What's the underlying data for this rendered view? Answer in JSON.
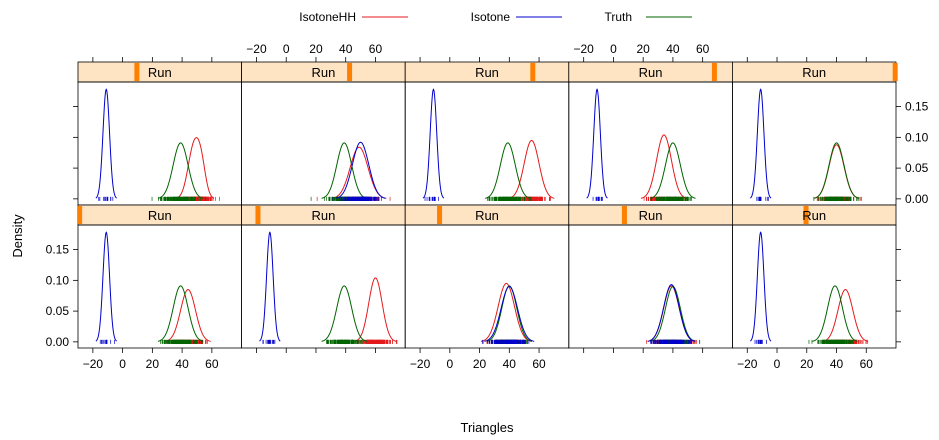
{
  "chart_data": {
    "type": "line",
    "layout": "trellis 5 columns x 2 rows",
    "xlabel": "Triangles",
    "ylabel": "Density",
    "xlim": [
      -30,
      80
    ],
    "ylim": [
      -0.01,
      0.19
    ],
    "x_ticks": [
      -20,
      0,
      20,
      40,
      60
    ],
    "y_ticks": [
      0.0,
      0.05,
      0.1,
      0.15
    ],
    "y_tick_labels": [
      "0.00",
      "0.05",
      "0.10",
      "0.15"
    ],
    "legend": {
      "position": "top",
      "entries": [
        {
          "name": "IsotoneHH",
          "color": "#e41a1c"
        },
        {
          "name": "Isotone",
          "color": "#0000cc"
        },
        {
          "name": "Truth",
          "color": "#006400"
        }
      ]
    },
    "colors": {
      "IsotoneHH": "#e41a1c",
      "Isotone": "#0000cc",
      "Truth": "#006400",
      "strip_bg": "#ffe4c4",
      "strip_marker": "#ff7f00"
    },
    "strip_label": "Run",
    "panels": [
      {
        "row": 1,
        "col": 1,
        "strip_marker": 0.36,
        "series": [
          {
            "name": "Isotone",
            "peaks": [
              {
                "mean": -11,
                "sd": 2.2,
                "height": 0.178
              }
            ]
          },
          {
            "name": "IsotoneHH",
            "peaks": [
              {
                "mean": 48,
                "sd": 4.0,
                "height": 0.085
              },
              {
                "mean": 53,
                "sd": 3.0,
                "height": 0.04
              }
            ]
          },
          {
            "name": "Truth",
            "peaks": [
              {
                "mean": 39,
                "sd": 5.0,
                "height": 0.091
              }
            ]
          }
        ]
      },
      {
        "row": 1,
        "col": 2,
        "strip_marker": 0.66,
        "series": [
          {
            "name": "Isotone",
            "peaks": [
              {
                "mean": 50,
                "sd": 5.5,
                "height": 0.092
              }
            ]
          },
          {
            "name": "IsotoneHH",
            "peaks": [
              {
                "mean": 49,
                "sd": 6.0,
                "height": 0.084
              }
            ]
          },
          {
            "name": "Truth",
            "peaks": [
              {
                "mean": 39,
                "sd": 5.0,
                "height": 0.091
              }
            ]
          }
        ]
      },
      {
        "row": 1,
        "col": 3,
        "strip_marker": 0.78,
        "series": [
          {
            "name": "Isotone",
            "peaks": [
              {
                "mean": -11,
                "sd": 2.2,
                "height": 0.178
              }
            ]
          },
          {
            "name": "IsotoneHH",
            "peaks": [
              {
                "mean": 55,
                "sd": 5.0,
                "height": 0.095
              }
            ]
          },
          {
            "name": "Truth",
            "peaks": [
              {
                "mean": 39,
                "sd": 5.0,
                "height": 0.091
              }
            ]
          }
        ]
      },
      {
        "row": 1,
        "col": 4,
        "strip_marker": 0.89,
        "series": [
          {
            "name": "Isotone",
            "peaks": [
              {
                "mean": -11,
                "sd": 2.2,
                "height": 0.178
              }
            ]
          },
          {
            "name": "IsotoneHH",
            "peaks": [
              {
                "mean": 34,
                "sd": 5.0,
                "height": 0.104
              }
            ]
          },
          {
            "name": "Truth",
            "peaks": [
              {
                "mean": 40,
                "sd": 5.0,
                "height": 0.091
              }
            ]
          }
        ]
      },
      {
        "row": 1,
        "col": 5,
        "strip_marker": 0.995,
        "series": [
          {
            "name": "Isotone",
            "peaks": [
              {
                "mean": -11,
                "sd": 2.2,
                "height": 0.178
              }
            ]
          },
          {
            "name": "IsotoneHH",
            "peaks": [
              {
                "mean": 40,
                "sd": 5.0,
                "height": 0.088
              }
            ]
          },
          {
            "name": "Truth",
            "peaks": [
              {
                "mean": 40,
                "sd": 5.0,
                "height": 0.091
              }
            ]
          }
        ]
      },
      {
        "row": 2,
        "col": 1,
        "strip_marker": 0.01,
        "series": [
          {
            "name": "Isotone",
            "peaks": [
              {
                "mean": -11,
                "sd": 2.2,
                "height": 0.178
              }
            ]
          },
          {
            "name": "IsotoneHH",
            "peaks": [
              {
                "mean": 44,
                "sd": 5.0,
                "height": 0.085
              }
            ]
          },
          {
            "name": "Truth",
            "peaks": [
              {
                "mean": 39,
                "sd": 5.0,
                "height": 0.091
              }
            ]
          }
        ]
      },
      {
        "row": 2,
        "col": 2,
        "strip_marker": 0.1,
        "series": [
          {
            "name": "Isotone",
            "peaks": [
              {
                "mean": -11,
                "sd": 2.2,
                "height": 0.178
              }
            ]
          },
          {
            "name": "IsotoneHH",
            "peaks": [
              {
                "mean": 60,
                "sd": 4.5,
                "height": 0.104
              }
            ]
          },
          {
            "name": "Truth",
            "peaks": [
              {
                "mean": 39,
                "sd": 5.0,
                "height": 0.091
              }
            ]
          }
        ]
      },
      {
        "row": 2,
        "col": 3,
        "strip_marker": 0.21,
        "series": [
          {
            "name": "Isotone",
            "peaks": [
              {
                "mean": 40,
                "sd": 5.5,
                "height": 0.09
              }
            ]
          },
          {
            "name": "IsotoneHH",
            "peaks": [
              {
                "mean": 38,
                "sd": 5.5,
                "height": 0.095
              }
            ]
          },
          {
            "name": "Truth",
            "peaks": [
              {
                "mean": 40,
                "sd": 5.0,
                "height": 0.091
              }
            ]
          }
        ]
      },
      {
        "row": 2,
        "col": 4,
        "strip_marker": 0.34,
        "series": [
          {
            "name": "Isotone",
            "peaks": [
              {
                "mean": 39,
                "sd": 5.2,
                "height": 0.093
              }
            ]
          },
          {
            "name": "IsotoneHH",
            "peaks": [
              {
                "mean": 39,
                "sd": 5.2,
                "height": 0.091
              }
            ]
          },
          {
            "name": "Truth",
            "peaks": [
              {
                "mean": 40,
                "sd": 5.0,
                "height": 0.09
              }
            ]
          }
        ]
      },
      {
        "row": 2,
        "col": 5,
        "strip_marker": 0.45,
        "series": [
          {
            "name": "Isotone",
            "peaks": [
              {
                "mean": -11,
                "sd": 2.2,
                "height": 0.178
              }
            ]
          },
          {
            "name": "IsotoneHH",
            "peaks": [
              {
                "mean": 46,
                "sd": 5.0,
                "height": 0.085
              }
            ]
          },
          {
            "name": "Truth",
            "peaks": [
              {
                "mean": 39,
                "sd": 5.0,
                "height": 0.091
              }
            ]
          }
        ]
      }
    ]
  }
}
